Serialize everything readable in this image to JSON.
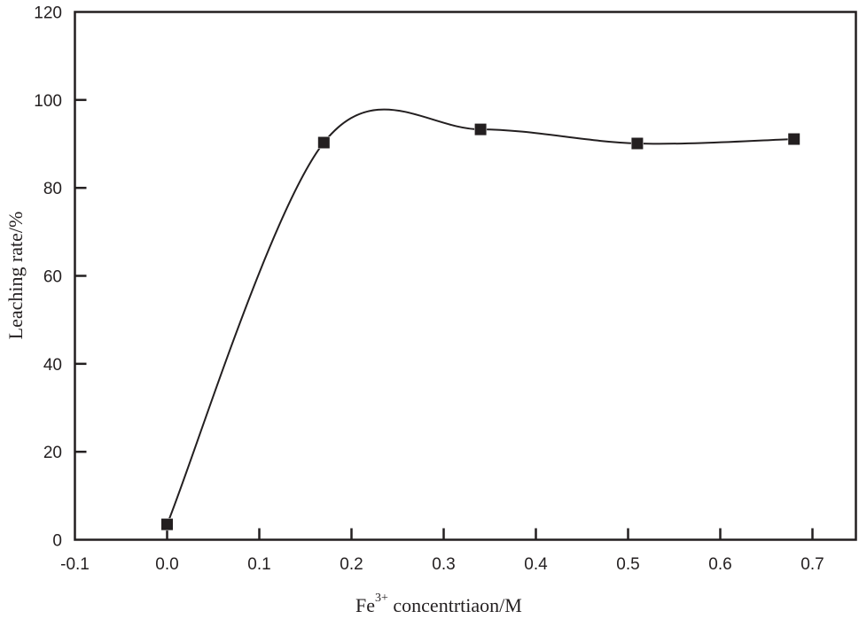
{
  "chart_data": {
    "type": "line",
    "title": "",
    "xlabel_main": "Fe",
    "xlabel_sup": "3+",
    "xlabel_rest": " concentrtiaon/M",
    "xlabel": "Fe3+ concentrtiaon/M",
    "ylabel": "Leaching rate/%",
    "xlim": [
      -0.1,
      0.75
    ],
    "ylim": [
      0,
      120
    ],
    "xticks": [
      "-0.1",
      "0.0",
      "0.1",
      "0.2",
      "0.3",
      "0.4",
      "0.5",
      "0.6",
      "0.7"
    ],
    "yticks": [
      "0",
      "20",
      "40",
      "60",
      "80",
      "100",
      "120"
    ],
    "grid": false,
    "legend": null,
    "series": [
      {
        "name": "Leaching rate",
        "marker": "square",
        "smooth": true,
        "x": [
          0.0,
          0.17,
          0.34,
          0.51,
          0.68
        ],
        "y": [
          3.5,
          90.3,
          93.3,
          90.1,
          91.1
        ]
      }
    ],
    "color": "#231f20"
  }
}
